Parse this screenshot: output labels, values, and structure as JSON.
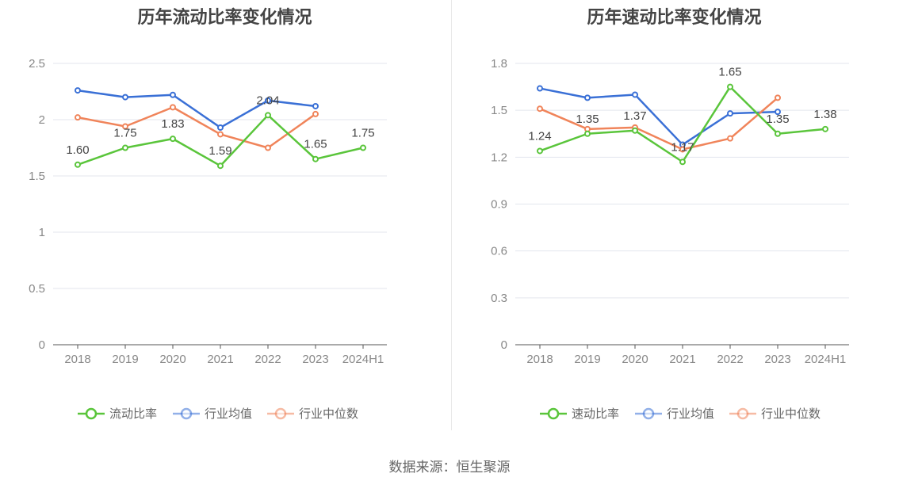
{
  "source_text": "数据来源：恒生聚源",
  "chart_data": [
    {
      "type": "line",
      "title": "历年流动比率变化情况",
      "categories": [
        "2018",
        "2019",
        "2020",
        "2021",
        "2022",
        "2023",
        "2024H1"
      ],
      "ylim": [
        0,
        2.5
      ],
      "yticks": [
        "0",
        "0.5",
        "1",
        "1.5",
        "2",
        "2.5"
      ],
      "grid": true,
      "legend_position": "bottom",
      "series": [
        {
          "name": "流动比率",
          "color": "#5ac53b",
          "values": [
            1.6,
            1.75,
            1.83,
            1.59,
            2.04,
            1.65,
            1.75
          ],
          "labels": [
            "1.60",
            "1.75",
            "1.83",
            "1.59",
            "2.04",
            "1.65",
            "1.75"
          ],
          "show_labels": true,
          "label_pos": "above"
        },
        {
          "name": "行业均值",
          "color": "#3a70d6",
          "values": [
            2.26,
            2.2,
            2.22,
            1.93,
            2.17,
            2.12,
            null
          ],
          "show_labels": false
        },
        {
          "name": "行业中位数",
          "color": "#f0845a",
          "values": [
            2.02,
            1.94,
            2.11,
            1.87,
            1.75,
            2.05,
            null
          ],
          "show_labels": false
        }
      ]
    },
    {
      "type": "line",
      "title": "历年速动比率变化情况",
      "categories": [
        "2018",
        "2019",
        "2020",
        "2021",
        "2022",
        "2023",
        "2024H1"
      ],
      "ylim": [
        0,
        1.8
      ],
      "yticks": [
        "0",
        "0.3",
        "0.6",
        "0.9",
        "1.2",
        "1.5",
        "1.8"
      ],
      "grid": true,
      "legend_position": "bottom",
      "series": [
        {
          "name": "速动比率",
          "color": "#5ac53b",
          "values": [
            1.24,
            1.35,
            1.37,
            1.17,
            1.65,
            1.35,
            1.38
          ],
          "labels": [
            "1.24",
            "1.35",
            "1.37",
            "1.17",
            "1.65",
            "1.35",
            "1.38"
          ],
          "show_labels": true,
          "label_pos": "above"
        },
        {
          "name": "行业均值",
          "color": "#3a70d6",
          "values": [
            1.64,
            1.58,
            1.6,
            1.28,
            1.48,
            1.49,
            null
          ],
          "show_labels": false
        },
        {
          "name": "行业中位数",
          "color": "#f0845a",
          "values": [
            1.51,
            1.38,
            1.39,
            1.25,
            1.32,
            1.58,
            null
          ],
          "show_labels": false
        }
      ]
    }
  ]
}
